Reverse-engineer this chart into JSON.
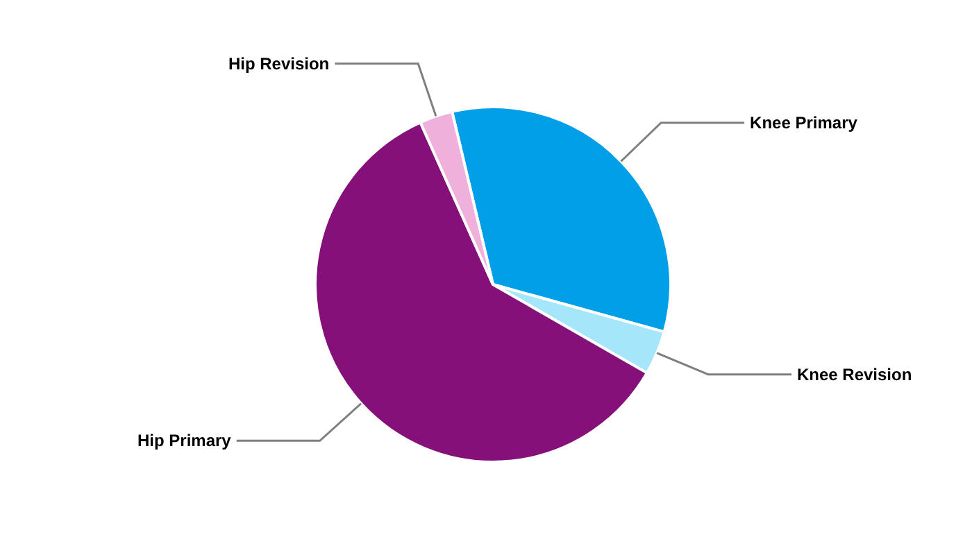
{
  "chart_data": {
    "type": "pie",
    "categories": [
      "Knee Primary",
      "Knee Revision",
      "Hip Primary",
      "Hip Revision"
    ],
    "values": [
      33,
      4,
      60,
      3
    ],
    "colors": [
      "#009fe8",
      "#a6e6fb",
      "#85107a",
      "#f0b0dc"
    ],
    "legend": false
  }
}
